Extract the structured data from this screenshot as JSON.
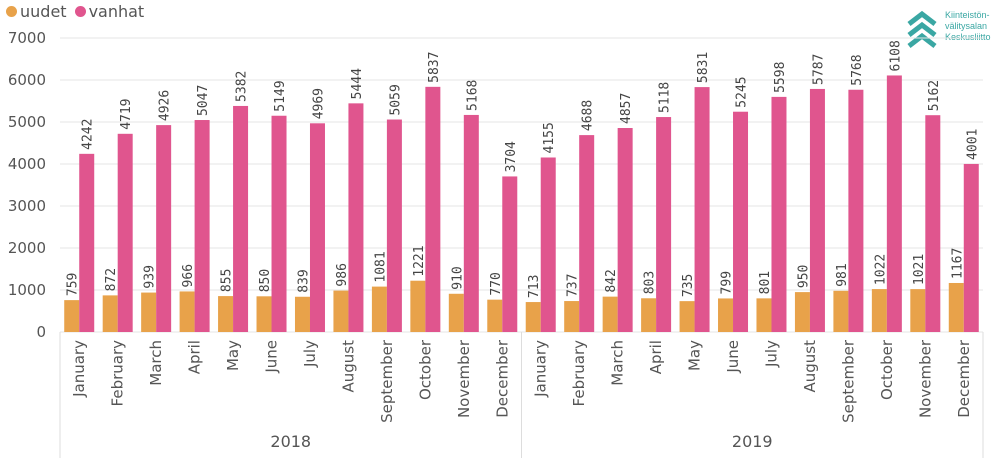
{
  "legend": {
    "items": [
      {
        "label": "uudet",
        "color": "#E8A24A"
      },
      {
        "label": "vanhat",
        "color": "#E0558E"
      }
    ]
  },
  "logo": {
    "lines": [
      "Kiinteistön-",
      "välitysalan",
      "Keskusliitto"
    ],
    "icon": "chevron-up-icon",
    "color": "#3aa7a3"
  },
  "chart_data": {
    "type": "bar",
    "ylim": [
      0,
      7000
    ],
    "yticks": [
      0,
      1000,
      2000,
      3000,
      4000,
      5000,
      6000,
      7000
    ],
    "grid": true,
    "legend_position": "top-left",
    "groups": [
      {
        "label": "2018",
        "categories": [
          "January",
          "February",
          "March",
          "April",
          "May",
          "June",
          "July",
          "August",
          "September",
          "October",
          "November",
          "December"
        ]
      },
      {
        "label": "2019",
        "categories": [
          "January",
          "February",
          "March",
          "April",
          "May",
          "June",
          "July",
          "August",
          "September",
          "October",
          "November",
          "December"
        ]
      }
    ],
    "series": [
      {
        "name": "uudet",
        "color": "#E8A24A",
        "values": [
          759,
          872,
          939,
          966,
          855,
          850,
          839,
          986,
          1081,
          1221,
          910,
          770,
          713,
          737,
          842,
          803,
          735,
          799,
          801,
          950,
          981,
          1022,
          1021,
          1167
        ]
      },
      {
        "name": "vanhat",
        "color": "#E0558E",
        "values": [
          4242,
          4719,
          4926,
          5047,
          5382,
          5149,
          4969,
          5444,
          5059,
          5837,
          5168,
          3704,
          4155,
          4688,
          4857,
          5118,
          5831,
          5245,
          5598,
          5787,
          5768,
          6108,
          5162,
          4001
        ]
      }
    ]
  }
}
